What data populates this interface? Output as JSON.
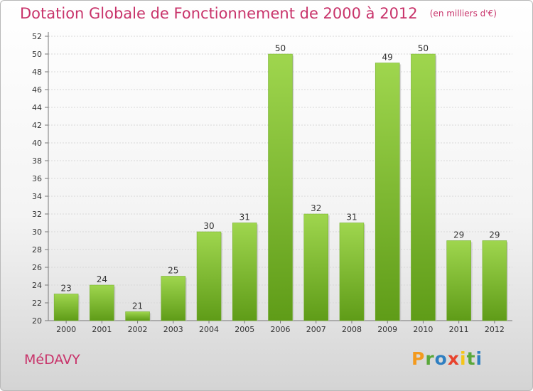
{
  "header": {
    "title": "Dotation Globale de Fonctionnement de 2000 à 2012",
    "subtitle": "(en milliers d'€)"
  },
  "commune": "MéDAVY",
  "brand": {
    "letters": [
      "P",
      "r",
      "o",
      "x",
      "i",
      "t",
      "i"
    ],
    "colors": [
      "#f39a1e",
      "#5aa83a",
      "#2f7fc1",
      "#e8432d",
      "#f5c518",
      "#5aa83a",
      "#2f7fc1"
    ]
  },
  "chart_data": {
    "type": "bar",
    "categories": [
      "2000",
      "2001",
      "2002",
      "2003",
      "2004",
      "2005",
      "2006",
      "2007",
      "2008",
      "2009",
      "2010",
      "2011",
      "2012"
    ],
    "values": [
      23,
      24,
      21,
      25,
      30,
      31,
      50,
      32,
      31,
      49,
      50,
      29,
      29
    ],
    "title": "Dotation Globale de Fonctionnement de 2000 à 2012",
    "subtitle": "(en milliers d'€)",
    "xlabel": "",
    "ylabel": "",
    "ylim": [
      20,
      52
    ],
    "yticks": [
      20,
      22,
      24,
      26,
      28,
      30,
      32,
      34,
      36,
      38,
      40,
      42,
      44,
      46,
      48,
      50,
      52
    ],
    "grid": true,
    "bar_color": "#7fbf2e"
  }
}
